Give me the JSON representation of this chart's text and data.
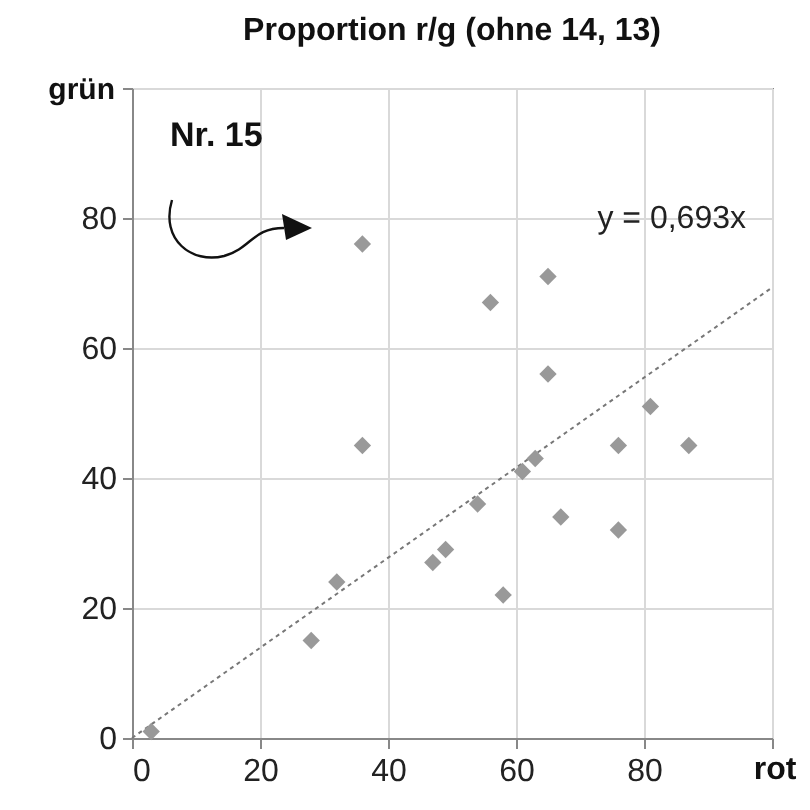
{
  "chart_data": {
    "type": "scatter",
    "title": "Proportion r/g (ohne 14, 13)",
    "xlabel": "rot",
    "ylabel": "grün",
    "xlim": [
      0,
      100
    ],
    "ylim": [
      0,
      100
    ],
    "xticks": [
      0,
      20,
      40,
      60,
      80,
      {
        "value": 100,
        "label": null
      }
    ],
    "yticks": [
      0,
      20,
      40,
      60,
      80,
      {
        "value": 100,
        "label": null
      }
    ],
    "grid": true,
    "series": [
      {
        "type": "scatter",
        "marker": "diamond",
        "color": "#999999",
        "x": [
          3,
          28,
          32,
          36,
          36,
          47,
          49,
          54,
          56,
          58,
          61,
          63,
          65,
          65,
          67,
          76,
          76,
          81,
          87
        ],
        "values": [
          1,
          15,
          24,
          45,
          76,
          27,
          29,
          36,
          67,
          22,
          41,
          43,
          71,
          56,
          34,
          45,
          32,
          51,
          45
        ]
      },
      {
        "type": "line",
        "color": "#777777",
        "line_style": "dotted",
        "x": [
          0,
          100
        ],
        "values": [
          0,
          69.3
        ]
      }
    ],
    "annotations": [
      "y = 0,693x",
      "Nr. 15"
    ]
  }
}
